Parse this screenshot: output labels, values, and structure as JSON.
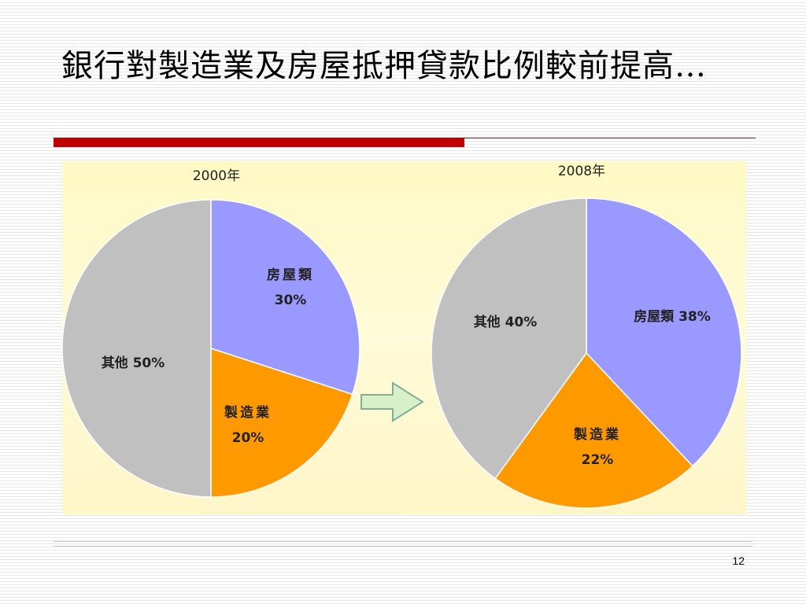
{
  "slide": {
    "title": "銀行對製造業及房屋抵押貸款比例較前提高…",
    "page_number": "12"
  },
  "colors": {
    "housing": "#9999ff",
    "manufacturing": "#ff9900",
    "others": "#c0c0c0",
    "title_rule": "#c00000",
    "panel_background": "#fff9c4",
    "arrow_fill": "#d8f0c8",
    "arrow_stroke": "#7fae9a"
  },
  "arrow_icon": "right-arrow-icon",
  "chart_data": [
    {
      "type": "pie",
      "title": "2000年",
      "slices": [
        {
          "label": "房屋類",
          "value": 30,
          "display": "30%",
          "color": "#9999ff"
        },
        {
          "label": "製造業",
          "value": 20,
          "display": "20%",
          "color": "#ff9900"
        },
        {
          "label": "其他",
          "value": 50,
          "display": "50%",
          "color": "#c0c0c0"
        }
      ]
    },
    {
      "type": "pie",
      "title": "2008年",
      "slices": [
        {
          "label": "房屋類",
          "value": 38,
          "display": "38%",
          "color": "#9999ff"
        },
        {
          "label": "製造業",
          "value": 22,
          "display": "22%",
          "color": "#ff9900"
        },
        {
          "label": "其他",
          "value": 40,
          "display": "40%",
          "color": "#c0c0c0"
        }
      ]
    }
  ]
}
